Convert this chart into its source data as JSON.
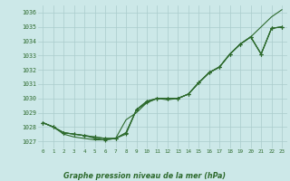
{
  "xlabel": "Graphe pression niveau de la mer (hPa)",
  "ylim": [
    1026.5,
    1036.5
  ],
  "xlim": [
    -0.5,
    23.5
  ],
  "yticks": [
    1027,
    1028,
    1029,
    1030,
    1031,
    1032,
    1033,
    1034,
    1035,
    1036
  ],
  "xticks": [
    0,
    1,
    2,
    3,
    4,
    5,
    6,
    7,
    8,
    9,
    10,
    11,
    12,
    13,
    14,
    15,
    16,
    17,
    18,
    19,
    20,
    21,
    22,
    23
  ],
  "bg_color": "#cce8e8",
  "grid_color": "#aacccc",
  "line_color": "#2d6a2d",
  "c1": [
    1028.3,
    1028.0,
    1027.5,
    1027.3,
    1027.2,
    1027.1,
    1027.1,
    1027.2,
    1028.5,
    1029.0,
    1029.7,
    1030.0,
    1029.9,
    1030.0,
    1030.3,
    1031.1,
    1031.8,
    1032.2,
    1033.1,
    1033.8,
    1034.3,
    1035.0,
    1035.7,
    1036.2
  ],
  "c2": [
    1028.3,
    1028.0,
    1027.6,
    1027.5,
    1027.4,
    1027.2,
    1027.1,
    1027.2,
    1027.6,
    1029.2,
    1029.8,
    1030.0,
    1030.0,
    1030.0,
    1030.3,
    1031.1,
    1031.8,
    1032.2,
    1033.1,
    1033.8,
    1034.3,
    1033.1,
    1034.9,
    1035.0
  ],
  "c3": [
    1028.3,
    1028.0,
    1027.6,
    1027.5,
    1027.4,
    1027.3,
    1027.2,
    1027.2,
    1027.6,
    1029.2,
    1029.8,
    1030.0,
    1030.0,
    1030.0,
    1030.3,
    1031.1,
    1031.8,
    1032.2,
    1033.1,
    1033.8,
    1034.3,
    1033.1,
    1034.9,
    1035.0
  ],
  "c4": [
    1028.3,
    1028.0,
    1027.6,
    1027.5,
    1027.4,
    1027.3,
    1027.2,
    1027.2,
    1027.5,
    1029.2,
    1029.7,
    1030.0,
    1030.0,
    1030.0,
    1030.3,
    1031.1,
    1031.8,
    1032.2,
    1033.1,
    1033.8,
    1034.3,
    1033.1,
    1034.9,
    1035.0
  ]
}
